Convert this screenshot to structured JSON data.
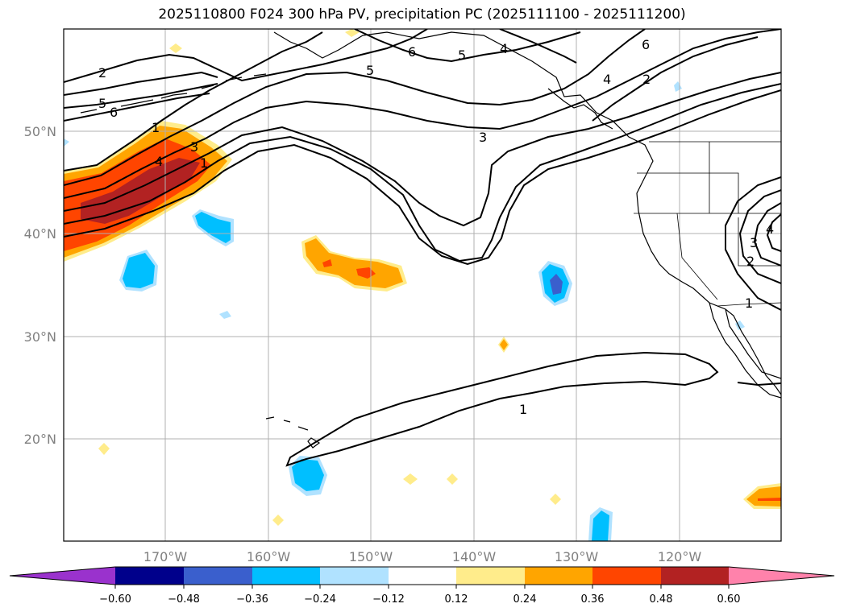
{
  "title": "2025110800 F024 300 hPa PV, precipitation PC (2025111100 - 2025111200)",
  "colors": {
    "neg_extreme": "#9a32cd",
    "neg_060": "#00008b",
    "neg_048": "#3a5fcd",
    "neg_036": "#00bfff",
    "neg_024": "#b0e2ff",
    "zero": "#ffffff",
    "pos_012": "#ffec8b",
    "pos_024": "#ffa500",
    "pos_036": "#ff4500",
    "pos_048": "#b22222",
    "pos_extreme": "#ff82ab"
  },
  "lat_labels": [
    "50°N",
    "40°N",
    "30°N",
    "20°N"
  ],
  "lon_labels": [
    "170°W",
    "160°W",
    "150°W",
    "140°W",
    "130°W",
    "120°W"
  ],
  "colorbar": {
    "ticks": [
      "−0.60",
      "−0.48",
      "−0.36",
      "−0.24",
      "−0.12",
      "0.12",
      "0.24",
      "0.36",
      "0.48",
      "0.60"
    ]
  },
  "pv_contour_labels": {
    "l2_west": "2",
    "l5_west": "5",
    "l6_west": "6",
    "l1_a": "1",
    "l3_a": "3",
    "l4_a": "4",
    "l5_mid": "5",
    "l6_top": "6",
    "l5_top": "5",
    "l3_mid": "3",
    "l4_east": "4",
    "l2_east": "2",
    "l6_ne": "6",
    "l4_ne": "4",
    "l1_sub": "1",
    "l4_se": "4",
    "l3_se": "3",
    "l2_se": "2",
    "l1_se": "1",
    "l1_low": "1"
  }
}
